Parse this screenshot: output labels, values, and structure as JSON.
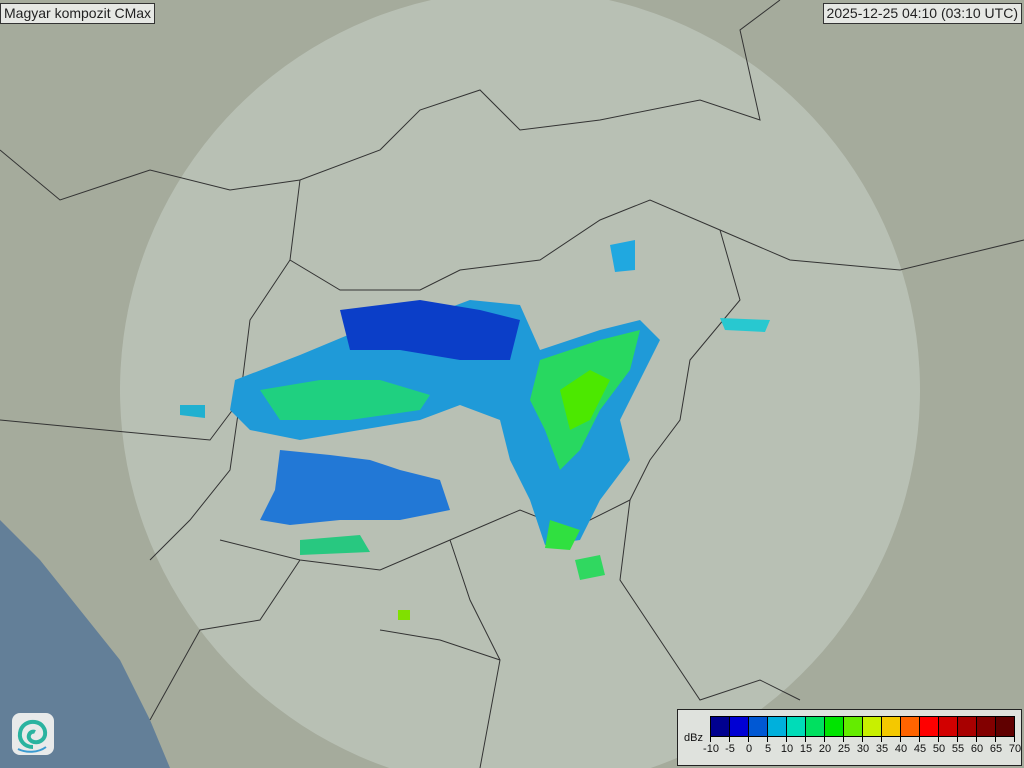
{
  "header": {
    "title": "Magyar kompozit  CMax",
    "timestamp": "2025-12-25 04:10 (03:10 UTC)"
  },
  "legend": {
    "unit": "dBz",
    "ticks": [
      "-10",
      "-5",
      "0",
      "5",
      "10",
      "15",
      "20",
      "25",
      "30",
      "35",
      "40",
      "45",
      "50",
      "55",
      "60",
      "65",
      "70"
    ],
    "colors": [
      "#00008f",
      "#0000d4",
      "#0058d4",
      "#00b0dc",
      "#00dcb8",
      "#00e060",
      "#00e400",
      "#64ec00",
      "#c8f000",
      "#f4c800",
      "#ff6400",
      "#ff0000",
      "#d20000",
      "#a80000",
      "#820000",
      "#600000"
    ]
  },
  "logo": {
    "icon": "met-service-swirl-logo"
  }
}
